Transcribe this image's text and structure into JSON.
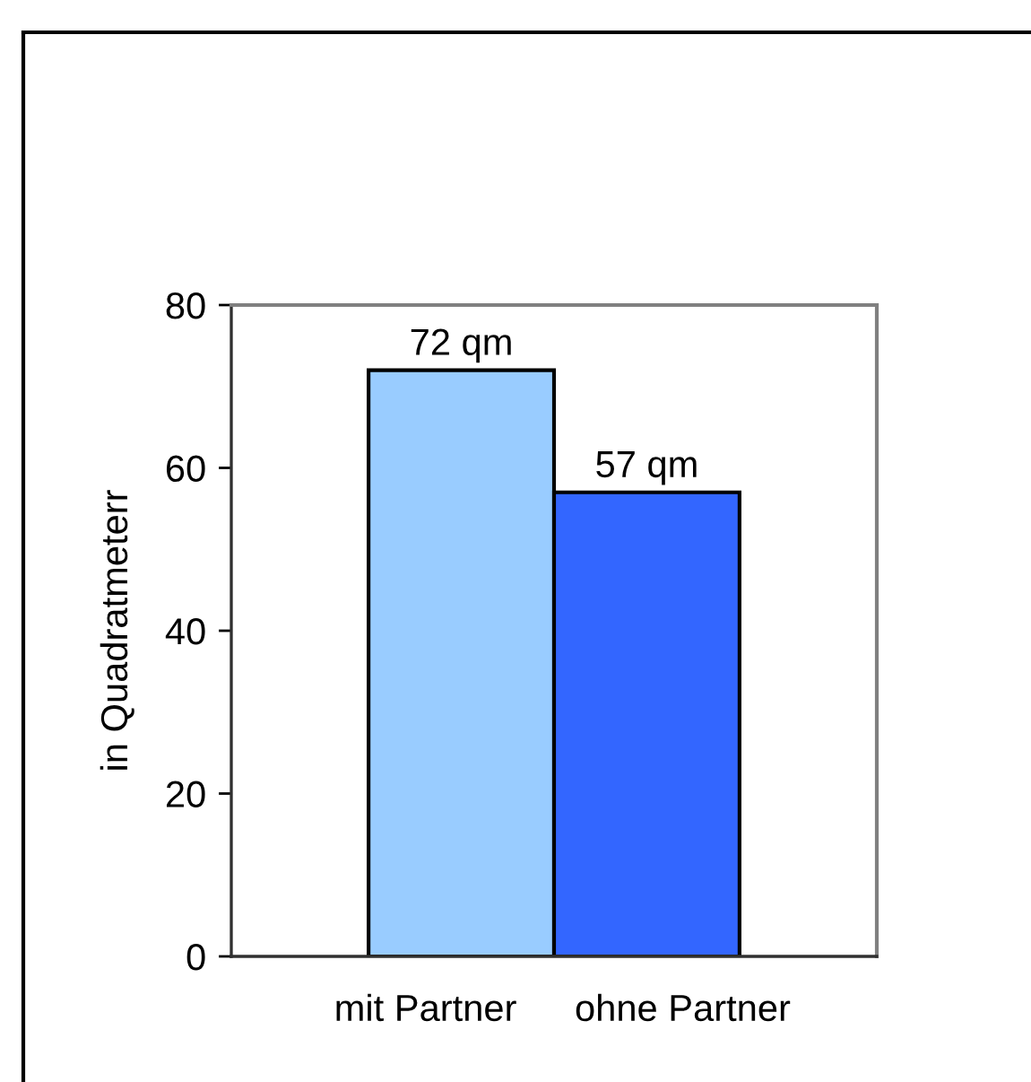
{
  "chart_data": {
    "type": "bar",
    "ylabel": "in Quadratmeterr",
    "categories": [
      "mit Partner",
      "ohne Partner"
    ],
    "values": [
      72,
      57
    ],
    "colors": [
      "#99ccff",
      "#3366ff"
    ],
    "value_labels": [
      "72 qm",
      "57 qm"
    ],
    "ylim": [
      0,
      80
    ],
    "yticks": [
      0,
      20,
      40,
      60,
      80
    ],
    "grid": false
  }
}
